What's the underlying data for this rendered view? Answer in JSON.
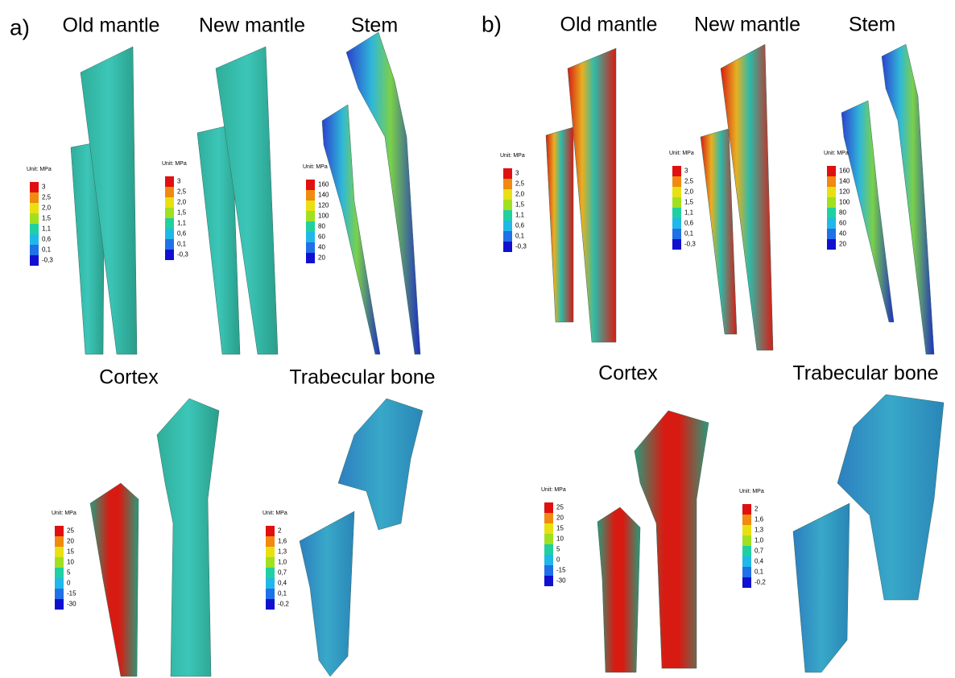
{
  "panels": [
    {
      "label": "a)",
      "groups": [
        {
          "title": "Old mantle",
          "legend": {
            "unit": "Unit: MPa",
            "labels": [
              "3",
              "2,5",
              "2,0",
              "1,5",
              "1,1",
              "0,6",
              "0,1",
              "-0,3"
            ]
          }
        },
        {
          "title": "New mantle",
          "legend": {
            "unit": "Unit: MPa",
            "labels": [
              "3",
              "2,5",
              "2,0",
              "1,5",
              "1,1",
              "0,6",
              "0,1",
              "-0,3"
            ]
          }
        },
        {
          "title": "Stem",
          "legend": {
            "unit": "Unit: MPa",
            "labels": [
              "160",
              "140",
              "120",
              "100",
              "80",
              "60",
              "40",
              "20"
            ]
          }
        },
        {
          "title": "Cortex",
          "legend": {
            "unit": "Unit: MPa",
            "labels": [
              "25",
              "20",
              "15",
              "10",
              "5",
              "0",
              "-15",
              "-30"
            ]
          }
        },
        {
          "title": "Trabecular bone",
          "legend": {
            "unit": "Unit: MPa",
            "labels": [
              "2",
              "1,6",
              "1,3",
              "1,0",
              "0,7",
              "0,4",
              "0,1",
              "-0,2"
            ]
          }
        }
      ]
    },
    {
      "label": "b)",
      "groups": [
        {
          "title": "Old mantle",
          "legend": {
            "unit": "Unit: MPa",
            "labels": [
              "3",
              "2,5",
              "2,0",
              "1,5",
              "1,1",
              "0,6",
              "0,1",
              "-0,3"
            ]
          }
        },
        {
          "title": "New mantle",
          "legend": {
            "unit": "Unit: MPa",
            "labels": [
              "3",
              "2,5",
              "2,0",
              "1,5",
              "1,1",
              "0,6",
              "0,1",
              "-0,3"
            ]
          }
        },
        {
          "title": "Stem",
          "legend": {
            "unit": "Unit: MPa",
            "labels": [
              "160",
              "140",
              "120",
              "100",
              "80",
              "60",
              "40",
              "20"
            ]
          }
        },
        {
          "title": "Cortex",
          "legend": {
            "unit": "Unit: MPa",
            "labels": [
              "25",
              "20",
              "15",
              "10",
              "5",
              "0",
              "-15",
              "-30"
            ]
          }
        },
        {
          "title": "Trabecular bone",
          "legend": {
            "unit": "Unit: MPa",
            "labels": [
              "2",
              "1,6",
              "1,3",
              "1,0",
              "0,7",
              "0,4",
              "0,1",
              "-0,2"
            ]
          }
        }
      ]
    }
  ]
}
